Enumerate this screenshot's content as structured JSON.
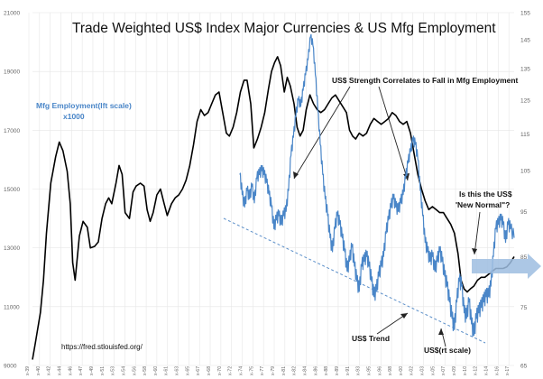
{
  "chart_data": {
    "type": "line",
    "title": "Trade Weighted US$ Index Major Currencies & US Mfg Employment",
    "source": "https://fred.stlouisfed.org/",
    "y_left": {
      "ticks": [
        9000,
        11000,
        13000,
        15000,
        17000,
        19000,
        21000
      ],
      "range": [
        9000,
        21000
      ],
      "series_label_lines": [
        "Mfg Employment(lft scale)",
        "x1000"
      ]
    },
    "y_right": {
      "ticks": [
        65,
        75,
        85,
        95,
        105,
        115,
        125,
        135,
        145,
        155
      ],
      "range": [
        65,
        155
      ],
      "scale": "log"
    },
    "x": {
      "range": [
        1939,
        2018
      ],
      "tick_labels": [
        "1939",
        "1940",
        "1942",
        "1944",
        "1946",
        "1947",
        "1949",
        "1951",
        "1953",
        "1954",
        "1956",
        "1958",
        "1960",
        "1961",
        "1963",
        "1965",
        "1967",
        "1968",
        "1970",
        "1972",
        "1974",
        "1975",
        "1977",
        "1979",
        "1981",
        "1982",
        "1984",
        "1986",
        "1988",
        "1989",
        "1991",
        "1993",
        "1995",
        "1996",
        "1998",
        "2000",
        "2002",
        "2003",
        "2005",
        "2007",
        "2009",
        "2010",
        "2012",
        "2014",
        "2016",
        "2017"
      ]
    },
    "series": [
      {
        "name": "Mfg Employment(lft scale)",
        "axis": "left",
        "color": "#000000",
        "points": [
          [
            1939,
            9200
          ],
          [
            1939.5,
            9800
          ],
          [
            1940.3,
            10800
          ],
          [
            1940.8,
            11900
          ],
          [
            1941.3,
            13500
          ],
          [
            1942,
            15200
          ],
          [
            1942.8,
            16100
          ],
          [
            1943.4,
            16600
          ],
          [
            1944,
            16300
          ],
          [
            1944.7,
            15600
          ],
          [
            1945.2,
            14500
          ],
          [
            1945.6,
            12500
          ],
          [
            1946,
            11900
          ],
          [
            1946.7,
            13400
          ],
          [
            1947.3,
            13900
          ],
          [
            1948,
            13700
          ],
          [
            1948.5,
            13000
          ],
          [
            1949.2,
            13050
          ],
          [
            1949.8,
            13200
          ],
          [
            1950.4,
            14000
          ],
          [
            1951,
            14500
          ],
          [
            1951.5,
            14700
          ],
          [
            1952,
            14500
          ],
          [
            1952.7,
            15200
          ],
          [
            1953.2,
            15800
          ],
          [
            1953.7,
            15500
          ],
          [
            1954.2,
            14200
          ],
          [
            1954.9,
            14000
          ],
          [
            1955.5,
            14900
          ],
          [
            1956,
            15100
          ],
          [
            1956.7,
            15200
          ],
          [
            1957.3,
            15100
          ],
          [
            1957.8,
            14300
          ],
          [
            1958.3,
            13900
          ],
          [
            1958.8,
            14200
          ],
          [
            1959.4,
            14800
          ],
          [
            1960,
            15000
          ],
          [
            1960.6,
            14500
          ],
          [
            1961.1,
            14100
          ],
          [
            1961.8,
            14500
          ],
          [
            1962.4,
            14700
          ],
          [
            1963,
            14800
          ],
          [
            1963.6,
            15000
          ],
          [
            1964.2,
            15300
          ],
          [
            1964.8,
            15800
          ],
          [
            1965.4,
            16500
          ],
          [
            1966,
            17300
          ],
          [
            1966.6,
            17700
          ],
          [
            1967.2,
            17500
          ],
          [
            1967.8,
            17600
          ],
          [
            1968.4,
            17900
          ],
          [
            1969,
            18200
          ],
          [
            1969.6,
            18300
          ],
          [
            1970.2,
            17600
          ],
          [
            1970.8,
            16900
          ],
          [
            1971.3,
            16800
          ],
          [
            1971.9,
            17100
          ],
          [
            1972.5,
            17600
          ],
          [
            1973.1,
            18300
          ],
          [
            1973.7,
            18700
          ],
          [
            1974.2,
            18700
          ],
          [
            1974.8,
            17900
          ],
          [
            1975.3,
            16400
          ],
          [
            1975.9,
            16700
          ],
          [
            1976.5,
            17100
          ],
          [
            1977.1,
            17600
          ],
          [
            1977.7,
            18400
          ],
          [
            1978.2,
            19000
          ],
          [
            1978.7,
            19300
          ],
          [
            1979.2,
            19500
          ],
          [
            1979.7,
            19200
          ],
          [
            1980.3,
            18300
          ],
          [
            1980.8,
            18800
          ],
          [
            1981.3,
            18500
          ],
          [
            1981.9,
            17900
          ],
          [
            1982.4,
            17100
          ],
          [
            1982.9,
            16800
          ],
          [
            1983.4,
            17000
          ],
          [
            1983.9,
            17700
          ],
          [
            1984.5,
            18200
          ],
          [
            1985.1,
            17900
          ],
          [
            1985.7,
            17700
          ],
          [
            1986.3,
            17600
          ],
          [
            1986.9,
            17700
          ],
          [
            1987.5,
            17900
          ],
          [
            1988.1,
            18100
          ],
          [
            1988.7,
            18200
          ],
          [
            1989.3,
            18000
          ],
          [
            1989.9,
            17800
          ],
          [
            1990.5,
            17600
          ],
          [
            1991,
            17000
          ],
          [
            1991.5,
            16800
          ],
          [
            1992,
            16700
          ],
          [
            1992.6,
            16900
          ],
          [
            1993.2,
            16800
          ],
          [
            1993.8,
            16900
          ],
          [
            1994.4,
            17200
          ],
          [
            1995,
            17400
          ],
          [
            1995.6,
            17300
          ],
          [
            1996.2,
            17200
          ],
          [
            1996.8,
            17300
          ],
          [
            1997.4,
            17400
          ],
          [
            1998,
            17600
          ],
          [
            1998.6,
            17500
          ],
          [
            1999.2,
            17300
          ],
          [
            1999.8,
            17200
          ],
          [
            2000.4,
            17300
          ],
          [
            2001,
            16900
          ],
          [
            2001.6,
            16200
          ],
          [
            2002.2,
            15500
          ],
          [
            2002.8,
            15000
          ],
          [
            2003.4,
            14600
          ],
          [
            2004,
            14300
          ],
          [
            2004.6,
            14400
          ],
          [
            2005.2,
            14300
          ],
          [
            2005.8,
            14200
          ],
          [
            2006.4,
            14200
          ],
          [
            2007,
            14000
          ],
          [
            2007.6,
            13800
          ],
          [
            2008.2,
            13500
          ],
          [
            2008.8,
            12800
          ],
          [
            2009.3,
            11900
          ],
          [
            2009.8,
            11600
          ],
          [
            2010.3,
            11500
          ],
          [
            2010.8,
            11600
          ],
          [
            2011.4,
            11700
          ],
          [
            2012,
            11900
          ],
          [
            2012.6,
            12000
          ],
          [
            2013.2,
            12000
          ],
          [
            2013.8,
            12100
          ],
          [
            2014.4,
            12200
          ],
          [
            2015,
            12300
          ],
          [
            2015.6,
            12300
          ],
          [
            2016.2,
            12300
          ],
          [
            2016.8,
            12350
          ],
          [
            2017.4,
            12500
          ],
          [
            2018,
            12700
          ]
        ]
      },
      {
        "name": "US$(rt scale)",
        "axis": "right",
        "color": "#4a86c8",
        "points": [
          [
            1973,
            104
          ],
          [
            1973.4,
            99
          ],
          [
            1973.8,
            96
          ],
          [
            1974.2,
            100
          ],
          [
            1974.6,
            98
          ],
          [
            1975,
            101
          ],
          [
            1975.4,
            97
          ],
          [
            1975.8,
            103
          ],
          [
            1976.2,
            104
          ],
          [
            1976.6,
            105
          ],
          [
            1977,
            104
          ],
          [
            1977.4,
            102
          ],
          [
            1977.8,
            99
          ],
          [
            1978.2,
            96
          ],
          [
            1978.6,
            91
          ],
          [
            1979,
            93
          ],
          [
            1979.4,
            94
          ],
          [
            1979.8,
            92
          ],
          [
            1980.2,
            94
          ],
          [
            1980.6,
            95
          ],
          [
            1981,
            100
          ],
          [
            1981.4,
            109
          ],
          [
            1981.8,
            114
          ],
          [
            1982.2,
            120
          ],
          [
            1982.6,
            125
          ],
          [
            1983,
            123
          ],
          [
            1983.4,
            128
          ],
          [
            1983.8,
            133
          ],
          [
            1984.2,
            138
          ],
          [
            1984.6,
            146
          ],
          [
            1985,
            143
          ],
          [
            1985.4,
            133
          ],
          [
            1985.8,
            122
          ],
          [
            1986.2,
            112
          ],
          [
            1986.6,
            104
          ],
          [
            1987,
            98
          ],
          [
            1987.4,
            94
          ],
          [
            1987.8,
            89
          ],
          [
            1988.2,
            86
          ],
          [
            1988.6,
            91
          ],
          [
            1989,
            94
          ],
          [
            1989.4,
            92
          ],
          [
            1989.8,
            89
          ],
          [
            1990.2,
            86
          ],
          [
            1990.6,
            82
          ],
          [
            1991,
            84
          ],
          [
            1991.4,
            87
          ],
          [
            1991.8,
            83
          ],
          [
            1992.2,
            80
          ],
          [
            1992.6,
            78
          ],
          [
            1993,
            83
          ],
          [
            1993.4,
            84
          ],
          [
            1993.8,
            85
          ],
          [
            1994.2,
            83
          ],
          [
            1994.6,
            80
          ],
          [
            1995,
            77
          ],
          [
            1995.4,
            78
          ],
          [
            1995.8,
            81
          ],
          [
            1996.2,
            83
          ],
          [
            1996.6,
            85
          ],
          [
            1997,
            90
          ],
          [
            1997.4,
            93
          ],
          [
            1997.8,
            96
          ],
          [
            1998.2,
            98
          ],
          [
            1998.6,
            96
          ],
          [
            1999,
            95
          ],
          [
            1999.4,
            97
          ],
          [
            1999.8,
            99
          ],
          [
            2000.2,
            103
          ],
          [
            2000.6,
            107
          ],
          [
            2001,
            110
          ],
          [
            2001.4,
            113
          ],
          [
            2001.8,
            112
          ],
          [
            2002.2,
            108
          ],
          [
            2002.6,
            100
          ],
          [
            2003,
            94
          ],
          [
            2003.4,
            88
          ],
          [
            2003.8,
            86
          ],
          [
            2004.2,
            84
          ],
          [
            2004.6,
            85
          ],
          [
            2005,
            82
          ],
          [
            2005.4,
            84
          ],
          [
            2005.8,
            86
          ],
          [
            2006.2,
            84
          ],
          [
            2006.6,
            81
          ],
          [
            2007,
            79
          ],
          [
            2007.4,
            76
          ],
          [
            2007.8,
            73
          ],
          [
            2008.2,
            71
          ],
          [
            2008.6,
            76
          ],
          [
            2009,
            80
          ],
          [
            2009.4,
            79
          ],
          [
            2009.8,
            74
          ],
          [
            2010.2,
            73
          ],
          [
            2010.6,
            76
          ],
          [
            2011,
            72
          ],
          [
            2011.4,
            70
          ],
          [
            2011.8,
            73
          ],
          [
            2012.2,
            74
          ],
          [
            2012.6,
            75
          ],
          [
            2013,
            76
          ],
          [
            2013.4,
            77
          ],
          [
            2013.8,
            77
          ],
          [
            2014.2,
            79
          ],
          [
            2014.6,
            85
          ],
          [
            2015,
            91
          ],
          [
            2015.4,
            92
          ],
          [
            2015.8,
            93
          ],
          [
            2016.2,
            92
          ],
          [
            2016.6,
            88
          ],
          [
            2017,
            92
          ],
          [
            2017.4,
            91
          ],
          [
            2018,
            89
          ]
        ]
      }
    ],
    "annotations": [
      {
        "text": "US$ Strength Correlates to Fall in Mfg Employment"
      },
      {
        "text_lines": [
          "Is this the US$",
          "'New Normal\"?"
        ]
      },
      {
        "text": "US$ Trend"
      },
      {
        "text": "US$(rt scale)"
      }
    ],
    "grid": true,
    "legend": "none"
  }
}
